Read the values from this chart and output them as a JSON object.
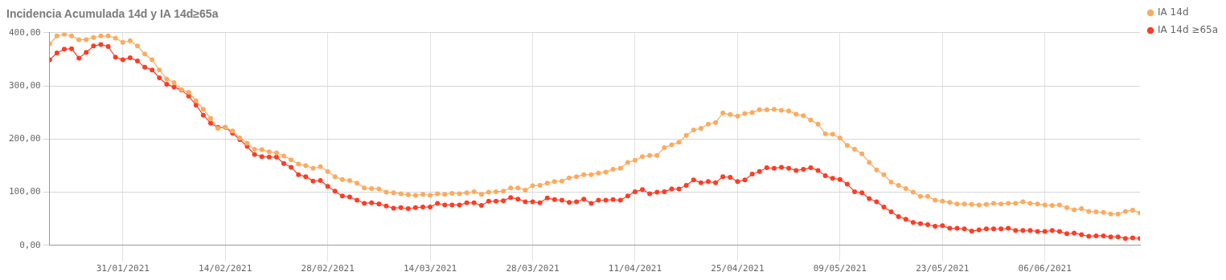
{
  "chart_data": {
    "type": "line",
    "title": "Incidencia Acumulada 14d y IA 14d≥65a",
    "x": [
      "2021-01-21",
      "2021-01-22",
      "2021-01-23",
      "2021-01-24",
      "2021-01-25",
      "2021-01-26",
      "2021-01-27",
      "2021-01-28",
      "2021-01-29",
      "2021-01-30",
      "2021-01-31",
      "2021-02-01",
      "2021-02-02",
      "2021-02-03",
      "2021-02-04",
      "2021-02-05",
      "2021-02-06",
      "2021-02-07",
      "2021-02-08",
      "2021-02-09",
      "2021-02-10",
      "2021-02-11",
      "2021-02-12",
      "2021-02-13",
      "2021-02-14",
      "2021-02-15",
      "2021-02-16",
      "2021-02-17",
      "2021-02-18",
      "2021-02-19",
      "2021-02-20",
      "2021-02-21",
      "2021-02-22",
      "2021-02-23",
      "2021-02-24",
      "2021-02-25",
      "2021-02-26",
      "2021-02-27",
      "2021-02-28",
      "2021-03-01",
      "2021-03-02",
      "2021-03-03",
      "2021-03-04",
      "2021-03-05",
      "2021-03-06",
      "2021-03-07",
      "2021-03-08",
      "2021-03-09",
      "2021-03-10",
      "2021-03-11",
      "2021-03-12",
      "2021-03-13",
      "2021-03-14",
      "2021-03-15",
      "2021-03-16",
      "2021-03-17",
      "2021-03-18",
      "2021-03-19",
      "2021-03-20",
      "2021-03-21",
      "2021-03-22",
      "2021-03-23",
      "2021-03-24",
      "2021-03-25",
      "2021-03-26",
      "2021-03-27",
      "2021-03-28",
      "2021-03-29",
      "2021-03-30",
      "2021-03-31",
      "2021-04-01",
      "2021-04-02",
      "2021-04-03",
      "2021-04-04",
      "2021-04-05",
      "2021-04-06",
      "2021-04-07",
      "2021-04-08",
      "2021-04-09",
      "2021-04-10",
      "2021-04-11",
      "2021-04-12",
      "2021-04-13",
      "2021-04-14",
      "2021-04-15",
      "2021-04-16",
      "2021-04-17",
      "2021-04-18",
      "2021-04-19",
      "2021-04-20",
      "2021-04-21",
      "2021-04-22",
      "2021-04-23",
      "2021-04-24",
      "2021-04-25",
      "2021-04-26",
      "2021-04-27",
      "2021-04-28",
      "2021-04-29",
      "2021-04-30",
      "2021-05-01",
      "2021-05-02",
      "2021-05-03",
      "2021-05-04",
      "2021-05-05",
      "2021-05-06",
      "2021-05-07",
      "2021-05-08",
      "2021-05-09",
      "2021-05-10",
      "2021-05-11",
      "2021-05-12",
      "2021-05-13",
      "2021-05-14",
      "2021-05-15",
      "2021-05-16",
      "2021-05-17",
      "2021-05-18",
      "2021-05-19",
      "2021-05-20",
      "2021-05-21",
      "2021-05-22",
      "2021-05-23",
      "2021-05-24",
      "2021-05-25",
      "2021-05-26",
      "2021-05-27",
      "2021-05-28",
      "2021-05-29",
      "2021-05-30",
      "2021-05-31",
      "2021-06-01",
      "2021-06-02",
      "2021-06-03",
      "2021-06-04",
      "2021-06-05",
      "2021-06-06",
      "2021-06-07",
      "2021-06-08",
      "2021-06-09",
      "2021-06-10",
      "2021-06-11",
      "2021-06-12",
      "2021-06-13",
      "2021-06-14",
      "2021-06-15",
      "2021-06-16",
      "2021-06-17",
      "2021-06-18",
      "2021-06-19"
    ],
    "series": [
      {
        "name": "IA 14d",
        "color": "#fbab60",
        "values": [
          379,
          394,
          397,
          394,
          387,
          387,
          391,
          394,
          394,
          390,
          382,
          385,
          375,
          360,
          349,
          330,
          313,
          306,
          293,
          288,
          272,
          256,
          239,
          220,
          222,
          215,
          202,
          192,
          181,
          180,
          176,
          174,
          168,
          161,
          153,
          150,
          145,
          148,
          139,
          129,
          124,
          122,
          117,
          108,
          107,
          106,
          100,
          99,
          97,
          95,
          94,
          96,
          94,
          97,
          96,
          98,
          97,
          99,
          101,
          96,
          100,
          101,
          102,
          108,
          108,
          104,
          112,
          113,
          117,
          120,
          121,
          127,
          129,
          133,
          133,
          136,
          138,
          143,
          145,
          156,
          160,
          167,
          169,
          169,
          184,
          189,
          194,
          207,
          217,
          220,
          228,
          231,
          249,
          246,
          243,
          248,
          250,
          255,
          255,
          256,
          254,
          253,
          247,
          244,
          236,
          228,
          210,
          209,
          202,
          188,
          181,
          172,
          156,
          142,
          133,
          119,
          113,
          107,
          100,
          92,
          92,
          85,
          83,
          81,
          78,
          78,
          77,
          76,
          77,
          79,
          78,
          79,
          79,
          82,
          79,
          78,
          76,
          75,
          76,
          71,
          67,
          69,
          64,
          63,
          62,
          59,
          59,
          64,
          66,
          61
        ]
      },
      {
        "name": "IA 14d ≥65a",
        "color": "#fc3d26",
        "values": [
          349,
          362,
          369,
          370,
          352,
          363,
          375,
          378,
          374,
          354,
          349,
          353,
          347,
          335,
          330,
          315,
          303,
          298,
          292,
          281,
          264,
          245,
          230,
          222,
          222,
          211,
          199,
          186,
          171,
          167,
          166,
          166,
          154,
          147,
          133,
          129,
          121,
          122,
          111,
          102,
          93,
          91,
          85,
          79,
          80,
          78,
          74,
          70,
          71,
          69,
          71,
          72,
          72,
          79,
          76,
          76,
          76,
          80,
          80,
          75,
          83,
          83,
          84,
          90,
          87,
          82,
          82,
          80,
          89,
          86,
          85,
          81,
          82,
          87,
          79,
          85,
          85,
          86,
          85,
          93,
          101,
          105,
          97,
          100,
          101,
          106,
          106,
          113,
          123,
          118,
          120,
          118,
          129,
          128,
          120,
          123,
          134,
          139,
          146,
          145,
          147,
          145,
          141,
          143,
          146,
          141,
          131,
          126,
          124,
          115,
          101,
          99,
          88,
          82,
          72,
          63,
          54,
          49,
          43,
          41,
          39,
          36,
          37,
          32,
          32,
          31,
          27,
          29,
          31,
          31,
          31,
          32,
          28,
          28,
          28,
          26,
          26,
          28,
          26,
          22,
          23,
          20,
          17,
          18,
          18,
          16,
          16,
          13,
          14,
          13
        ]
      }
    ],
    "xlim": [
      "2021-01-21",
      "2021-06-19"
    ],
    "xticks": [
      {
        "value": "2021-01-31",
        "label": "31/01/2021"
      },
      {
        "value": "2021-02-14",
        "label": "14/02/2021"
      },
      {
        "value": "2021-02-28",
        "label": "28/02/2021"
      },
      {
        "value": "2021-03-14",
        "label": "14/03/2021"
      },
      {
        "value": "2021-03-28",
        "label": "28/03/2021"
      },
      {
        "value": "2021-04-11",
        "label": "11/04/2021"
      },
      {
        "value": "2021-04-25",
        "label": "25/04/2021"
      },
      {
        "value": "2021-05-09",
        "label": "09/05/2021"
      },
      {
        "value": "2021-05-23",
        "label": "23/05/2021"
      },
      {
        "value": "2021-06-06",
        "label": "06/06/2021"
      }
    ],
    "ylim": [
      0,
      400
    ],
    "yticks": [
      {
        "value": 0,
        "label": "0,00"
      },
      {
        "value": 100,
        "label": "100,00"
      },
      {
        "value": 200,
        "label": "200,00"
      },
      {
        "value": 300,
        "label": "300,00"
      },
      {
        "value": 400,
        "label": "400,00"
      }
    ],
    "grid": true,
    "legend": "top right",
    "marker": "circle",
    "line_style": "solid"
  }
}
